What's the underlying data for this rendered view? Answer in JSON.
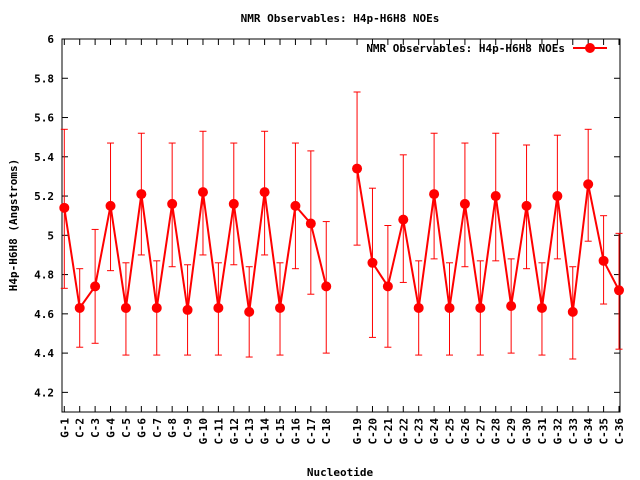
{
  "chart_data": {
    "type": "line",
    "title": "NMR Observables: H4p-H6H8 NOEs",
    "xlabel": "Nucleotide",
    "ylabel": "H4p-H6H8 (Angstroms)",
    "ylim": [
      4.1,
      6.0
    ],
    "yticks": [
      "4.2",
      "4.4",
      "4.6",
      "4.8",
      "5",
      "5.2",
      "5.4",
      "5.6",
      "5.8",
      "6"
    ],
    "grid": false,
    "legend_position": "top-right",
    "color": "#ff0000",
    "series": [
      {
        "name": "NMR Observables: H4p-H6H8 NOEs",
        "segments": [
          {
            "categories": [
              "G-1",
              "C-2",
              "C-3",
              "G-4",
              "C-5",
              "G-6",
              "C-7",
              "G-8",
              "C-9",
              "G-10",
              "C-11",
              "G-12",
              "C-13",
              "G-14",
              "C-15",
              "G-16",
              "C-17",
              "C-18"
            ],
            "values": [
              5.14,
              4.63,
              4.74,
              5.15,
              4.63,
              5.21,
              4.63,
              5.16,
              4.62,
              5.22,
              4.63,
              5.16,
              4.61,
              5.22,
              4.63,
              5.15,
              5.06,
              4.74
            ],
            "err_low": [
              4.73,
              4.43,
              4.45,
              4.82,
              4.39,
              4.9,
              4.39,
              4.84,
              4.39,
              4.9,
              4.39,
              4.85,
              4.38,
              4.9,
              4.39,
              4.83,
              4.7,
              4.4
            ],
            "err_high": [
              5.54,
              4.83,
              5.03,
              5.47,
              4.86,
              5.52,
              4.87,
              5.47,
              4.85,
              5.53,
              4.86,
              5.47,
              4.84,
              5.53,
              4.86,
              5.47,
              5.43,
              5.07
            ]
          },
          {
            "categories": [
              "G-19",
              "C-20",
              "C-21",
              "G-22",
              "C-23",
              "G-24",
              "C-25",
              "G-26",
              "C-27",
              "G-28",
              "C-29",
              "G-30",
              "C-31",
              "G-32",
              "C-33",
              "G-34",
              "C-35",
              "C-36"
            ],
            "values": [
              5.34,
              4.86,
              4.74,
              5.08,
              4.63,
              5.21,
              4.63,
              5.16,
              4.63,
              5.2,
              4.64,
              5.15,
              4.63,
              5.2,
              4.61,
              5.26,
              4.87,
              4.72
            ],
            "err_low": [
              4.95,
              4.48,
              4.43,
              4.76,
              4.39,
              4.88,
              4.39,
              4.84,
              4.39,
              4.87,
              4.4,
              4.83,
              4.39,
              4.88,
              4.37,
              4.97,
              4.65,
              4.42
            ],
            "err_high": [
              5.73,
              5.24,
              5.05,
              5.41,
              4.87,
              5.52,
              4.86,
              5.47,
              4.87,
              5.52,
              4.88,
              5.46,
              4.86,
              5.51,
              4.84,
              5.54,
              5.1,
              5.01
            ]
          }
        ]
      }
    ]
  }
}
